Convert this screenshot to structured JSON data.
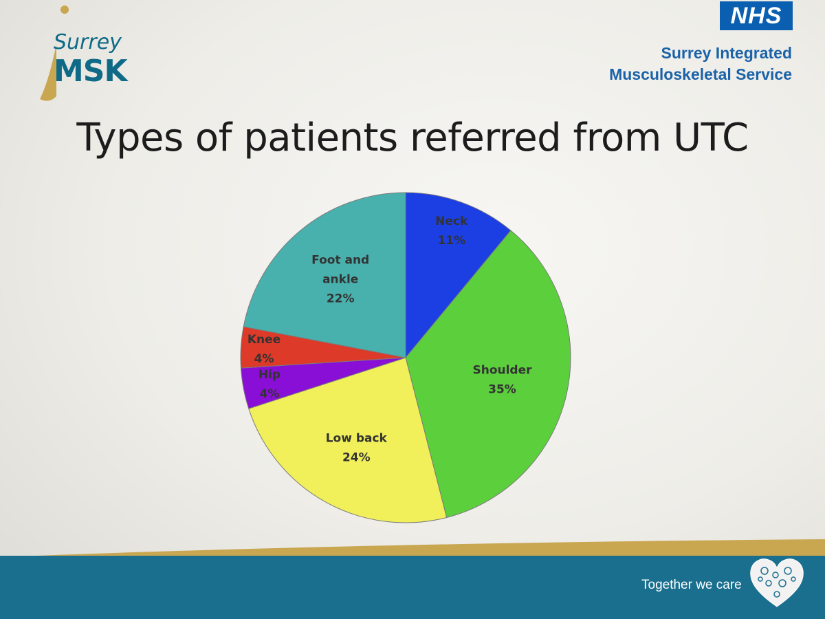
{
  "logo": {
    "line1": "Surrey",
    "line2": "MSK"
  },
  "header": {
    "nhs_badge": "NHS",
    "org_name_line1": "Surrey Integrated",
    "org_name_line2": "Musculoskeletal Service"
  },
  "footer": {
    "tagline": "Together we care",
    "icon": "heart-icon"
  },
  "colors": {
    "brand_teal": "#1a6f8f",
    "brand_gold": "#c9a650",
    "nhs_blue": "#0b5fb0"
  },
  "chart_data": {
    "type": "pie",
    "title": "Types of patients referred from UTC",
    "categories": [
      "Neck",
      "Shoulder",
      "Low back",
      "Hip",
      "Knee",
      "Foot and ankle"
    ],
    "values": [
      11,
      35,
      24,
      4,
      4,
      22
    ],
    "labels": [
      "11%",
      "35%",
      "24%",
      "4%",
      "4%",
      "22%"
    ],
    "colors": [
      "#1b3fe3",
      "#5ccf3c",
      "#f1f05a",
      "#8a0fd6",
      "#dd3a2a",
      "#49b1ad"
    ],
    "start_angle_deg": 0,
    "direction": "clockwise",
    "legend": "none"
  }
}
